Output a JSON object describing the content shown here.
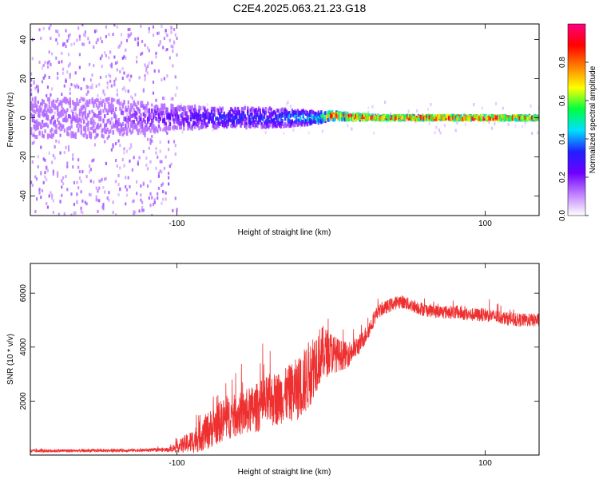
{
  "figure": {
    "title": "C2E4.2025.063.21.23.G18"
  },
  "chart_data": [
    {
      "type": "heatmap",
      "description_role": "spectrogram",
      "xlabel": "Height of straight line (km)",
      "ylabel": "Frequency (Hz)",
      "xlim": [
        -195,
        135
      ],
      "ylim": [
        -50,
        48
      ],
      "x_ticks": [
        -100,
        100
      ],
      "x_tick_labels": [
        "-100",
        "100"
      ],
      "y_ticks": [
        -40,
        -20,
        0,
        20,
        40
      ],
      "y_tick_labels": [
        "-40",
        "-20",
        "0",
        "20",
        "40"
      ],
      "colorbar": {
        "label": "Normalized spectral amplitude",
        "range": [
          0,
          1
        ],
        "ticks": [
          0.0,
          0.2,
          0.4,
          0.6,
          0.8
        ],
        "tick_labels": [
          "0.0",
          "0.2",
          "0.4",
          "0.6",
          "0.8"
        ],
        "colors": [
          "#ffffff",
          "#c080ff",
          "#7000ff",
          "#2020ff",
          "#00e0ff",
          "#00ff40",
          "#ffff00",
          "#ff8000",
          "#ff0000",
          "#ff0080"
        ]
      },
      "signal_track": [
        {
          "x": -195,
          "freq": 0,
          "amplitude": 0.15,
          "spread": 10
        },
        {
          "x": -150,
          "freq": 0,
          "amplitude": 0.15,
          "spread": 10
        },
        {
          "x": -100,
          "freq": 0,
          "amplitude": 0.25,
          "spread": 6
        },
        {
          "x": -70,
          "freq": 0,
          "amplitude": 0.35,
          "spread": 5
        },
        {
          "x": -40,
          "freq": 0,
          "amplitude": 0.35,
          "spread": 5
        },
        {
          "x": -10,
          "freq": 0,
          "amplitude": 0.5,
          "spread": 3
        },
        {
          "x": 0,
          "freq": 1,
          "amplitude": 0.9,
          "spread": 2
        },
        {
          "x": 30,
          "freq": 0,
          "amplitude": 0.9,
          "spread": 1
        },
        {
          "x": 60,
          "freq": 0,
          "amplitude": 0.95,
          "spread": 1
        },
        {
          "x": 100,
          "freq": 0,
          "amplitude": 0.95,
          "spread": 1
        },
        {
          "x": 135,
          "freq": 0,
          "amplitude": 0.85,
          "spread": 1
        }
      ]
    },
    {
      "type": "line",
      "xlabel": "Height of straight line (km)",
      "ylabel": "SNR (10 * v/v)",
      "xlim": [
        -195,
        135
      ],
      "ylim": [
        0,
        7100
      ],
      "x_ticks": [
        -100,
        100
      ],
      "x_tick_labels": [
        "-100",
        "100"
      ],
      "y_ticks": [
        2000,
        4000,
        6000
      ],
      "y_tick_labels": [
        "2000",
        "4000",
        "6000"
      ],
      "line_color": "#ee3030",
      "series": [
        {
          "x": [
            -195,
            -180,
            -160,
            -140,
            -120,
            -105,
            -100,
            -90,
            -80,
            -70,
            -60,
            -50,
            -40,
            -30,
            -20,
            -15,
            -10,
            -5,
            0,
            5,
            10,
            15,
            20,
            25,
            30,
            40,
            45,
            50,
            60,
            70,
            80,
            90,
            100,
            110,
            120,
            135
          ],
          "y": [
            150,
            160,
            160,
            170,
            180,
            200,
            300,
            500,
            900,
            1300,
            1500,
            1700,
            2000,
            2200,
            2500,
            2900,
            3500,
            3800,
            3800,
            3700,
            3700,
            3900,
            4200,
            4700,
            5300,
            5600,
            5700,
            5600,
            5400,
            5300,
            5300,
            5200,
            5200,
            5100,
            5000,
            5000
          ],
          "noise": [
            60,
            60,
            60,
            60,
            60,
            80,
            200,
            450,
            700,
            800,
            800,
            900,
            1000,
            1000,
            1200,
            1300,
            1200,
            1000,
            800,
            600,
            500,
            400,
            350,
            300,
            250,
            250,
            250,
            250,
            250,
            250,
            250,
            250,
            250,
            250,
            250,
            250
          ]
        }
      ]
    }
  ]
}
